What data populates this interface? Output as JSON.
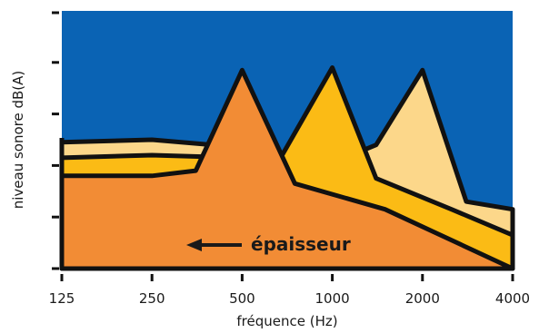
{
  "chart_data": {
    "type": "area",
    "title": "",
    "xlabel": "fréquence (Hz)",
    "ylabel": "niveau sonore dB(A)",
    "x_scale": "log2",
    "x_ticks": [
      "125",
      "250",
      "500",
      "1000",
      "2000",
      "4000"
    ],
    "x_range": [
      125,
      4000
    ],
    "y_range": [
      0,
      10
    ],
    "y_ticks_labeled": false,
    "grid": false,
    "background_color": "#0a63b4",
    "annotation": {
      "text": "épaisseur",
      "arrow_direction": "left"
    },
    "series": [
      {
        "color": "#fcd78a",
        "points": [
          [
            125,
            4.9
          ],
          [
            250,
            5.0
          ],
          [
            500,
            4.7
          ],
          [
            1000,
            4.1
          ],
          [
            1400,
            4.8
          ],
          [
            2000,
            7.7
          ],
          [
            2800,
            2.6
          ],
          [
            4000,
            2.3
          ]
        ]
      },
      {
        "color": "#fbbb15",
        "points": [
          [
            125,
            4.3
          ],
          [
            250,
            4.4
          ],
          [
            500,
            4.3
          ],
          [
            680,
            4.4
          ],
          [
            1000,
            7.8
          ],
          [
            1400,
            3.5
          ],
          [
            2500,
            2.3
          ],
          [
            4000,
            1.3
          ]
        ]
      },
      {
        "color": "#f28c35",
        "points": [
          [
            125,
            3.6
          ],
          [
            250,
            3.6
          ],
          [
            350,
            3.8
          ],
          [
            500,
            7.7
          ],
          [
            750,
            3.3
          ],
          [
            1500,
            2.3
          ],
          [
            4000,
            0
          ]
        ]
      }
    ]
  }
}
